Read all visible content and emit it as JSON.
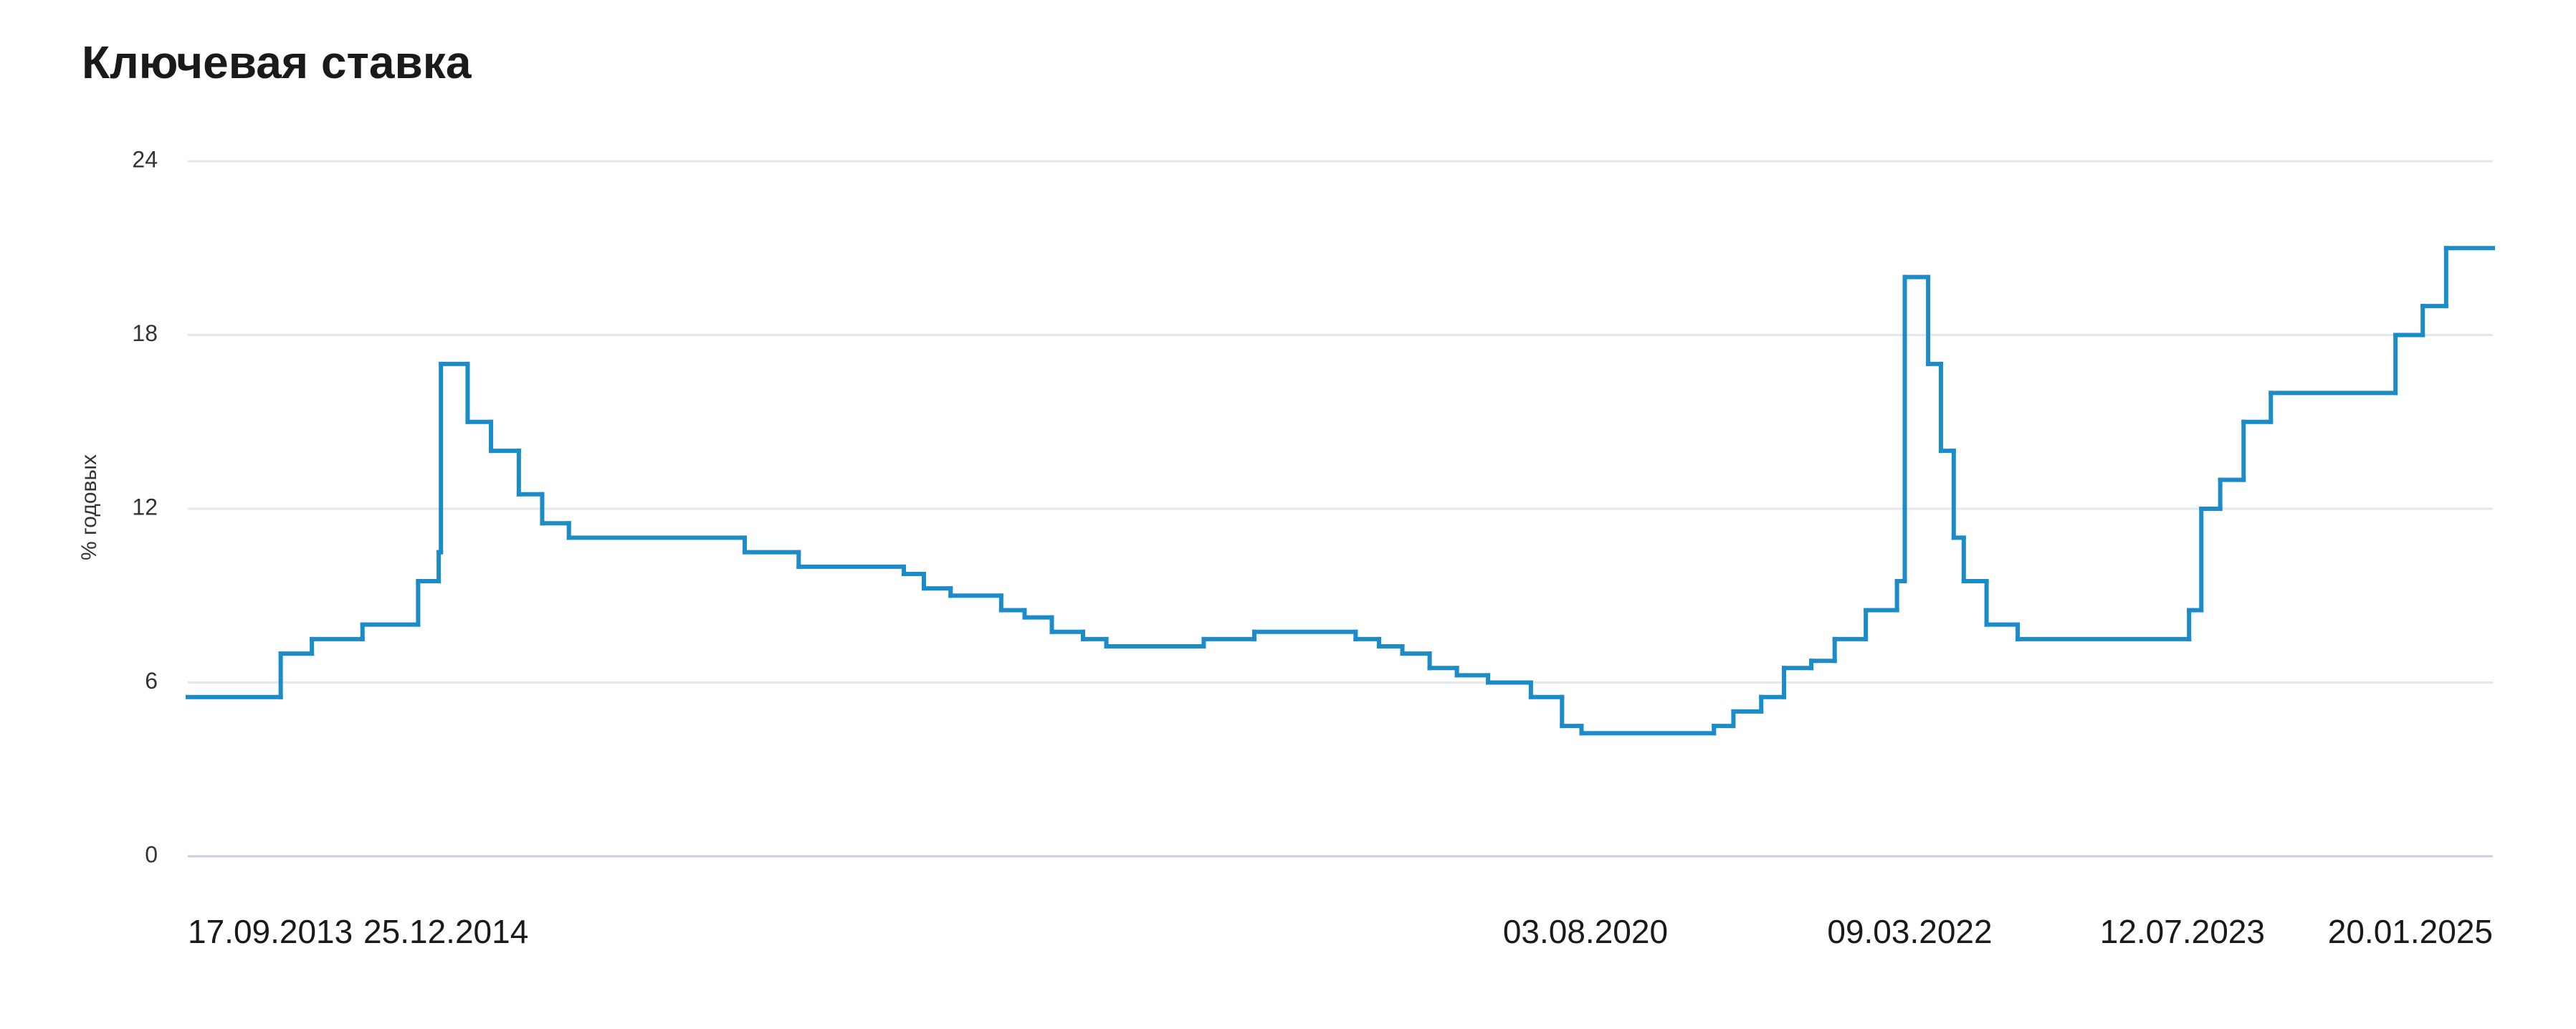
{
  "chart_data": {
    "type": "step-line",
    "title": "Ключевая ставка",
    "y_label": "% годовых",
    "x": [
      "17.09.2013",
      "03.03.2014",
      "28.04.2014",
      "28.07.2014",
      "05.11.2014",
      "12.12.2014",
      "16.12.2014",
      "02.02.2015",
      "16.03.2015",
      "05.05.2015",
      "16.06.2015",
      "03.08.2015",
      "14.06.2016",
      "19.09.2016",
      "27.03.2017",
      "02.05.2017",
      "19.06.2017",
      "18.09.2017",
      "30.10.2017",
      "18.12.2017",
      "12.02.2018",
      "26.03.2018",
      "17.09.2018",
      "17.12.2018",
      "17.06.2019",
      "29.07.2019",
      "09.09.2019",
      "28.10.2019",
      "16.12.2019",
      "10.02.2020",
      "27.04.2020",
      "22.06.2020",
      "27.07.2020",
      "22.03.2021",
      "26.04.2021",
      "15.06.2021",
      "26.07.2021",
      "13.09.2021",
      "25.10.2021",
      "20.12.2021",
      "14.02.2022",
      "28.02.2022",
      "11.04.2022",
      "04.05.2022",
      "27.05.2022",
      "14.06.2022",
      "25.07.2022",
      "19.09.2022",
      "24.07.2023",
      "15.08.2023",
      "18.09.2023",
      "30.10.2023",
      "18.12.2023",
      "29.07.2024",
      "16.09.2024",
      "28.10.2024"
    ],
    "series": [
      {
        "name": "Ключевая ставка",
        "color": "#1b8cc9",
        "values": [
          5.5,
          7,
          7.5,
          8,
          9.5,
          10.5,
          17,
          15,
          14,
          12.5,
          11.5,
          11,
          10.5,
          10,
          9.75,
          9.25,
          9,
          8.5,
          8.25,
          7.75,
          7.5,
          7.25,
          7.5,
          7.75,
          7.5,
          7.25,
          7,
          6.5,
          6.25,
          6,
          5.5,
          4.5,
          4.25,
          4.5,
          5,
          5.5,
          6.5,
          6.75,
          7.5,
          8.5,
          9.5,
          20,
          17,
          14,
          11,
          9.5,
          8,
          7.5,
          8.5,
          12,
          13,
          15,
          16,
          18,
          19,
          21
        ]
      }
    ],
    "xlim": [
      "17.09.2013",
      "20.01.2025"
    ],
    "xticks": [
      "17.09.2013",
      "25.12.2014",
      "03.08.2020",
      "09.03.2022",
      "12.07.2023",
      "20.01.2025"
    ],
    "ylim": [
      0,
      24
    ],
    "yticks": [
      0,
      6,
      12,
      18,
      24
    ],
    "grid": true
  }
}
